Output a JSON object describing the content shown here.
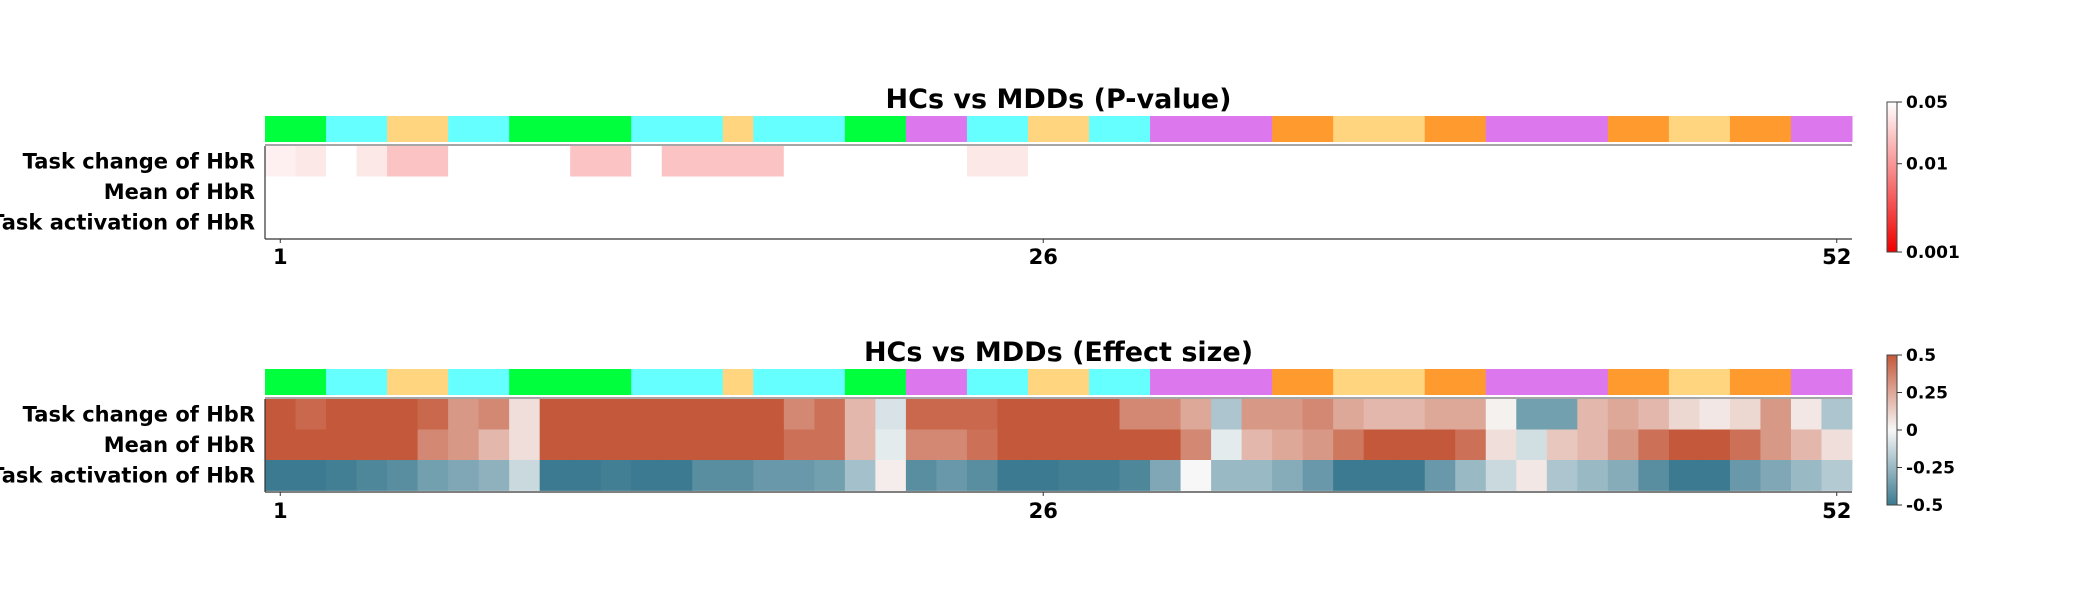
{
  "chart_data": [
    {
      "type": "heatmap",
      "title": "HCs vs MDDs (P-value)",
      "rows": [
        "Task change of HbR",
        "Mean of HbR",
        "Task activation of HbR"
      ],
      "x_ticks": [
        "1",
        "26",
        "52"
      ],
      "n_columns": 52,
      "scale": "log",
      "colorbar": {
        "range": [
          0.001,
          0.05
        ],
        "tick_values": [
          0.05,
          0.01,
          0.001
        ],
        "tick_labels": [
          "0.05",
          "0.01",
          "0.001"
        ],
        "colors": [
          "#ee0000",
          "#ffffff"
        ]
      },
      "region_bar": {
        "colors": [
          "#00ff3c",
          "#66ffff",
          "#ffd580",
          "#dd77ee",
          "#ff9a2e"
        ],
        "segments": [
          {
            "start": 1,
            "end": 2,
            "color": 0
          },
          {
            "start": 3,
            "end": 4,
            "color": 1
          },
          {
            "start": 5,
            "end": 6,
            "color": 2
          },
          {
            "start": 7,
            "end": 8,
            "color": 1
          },
          {
            "start": 9,
            "end": 12,
            "color": 0
          },
          {
            "start": 13,
            "end": 15,
            "color": 1
          },
          {
            "start": 16,
            "end": 16,
            "color": 2
          },
          {
            "start": 17,
            "end": 19,
            "color": 1
          },
          {
            "start": 20,
            "end": 21,
            "color": 0
          },
          {
            "start": 22,
            "end": 23,
            "color": 3
          },
          {
            "start": 24,
            "end": 25,
            "color": 1
          },
          {
            "start": 26,
            "end": 27,
            "color": 2
          },
          {
            "start": 28,
            "end": 29,
            "color": 1
          },
          {
            "start": 30,
            "end": 33,
            "color": 3
          },
          {
            "start": 34,
            "end": 35,
            "color": 4
          },
          {
            "start": 36,
            "end": 38,
            "color": 2
          },
          {
            "start": 39,
            "end": 40,
            "color": 4
          },
          {
            "start": 41,
            "end": 44,
            "color": 3
          },
          {
            "start": 45,
            "end": 46,
            "color": 4
          },
          {
            "start": 47,
            "end": 48,
            "color": 2
          },
          {
            "start": 49,
            "end": 50,
            "color": 4
          },
          {
            "start": 51,
            "end": 52,
            "color": 3
          }
        ]
      },
      "values": [
        [
          0.04,
          0.035,
          1,
          0.035,
          0.02,
          0.02,
          1,
          1,
          1,
          1,
          0.02,
          0.02,
          1,
          0.02,
          0.02,
          0.02,
          0.02,
          1,
          1,
          1,
          1,
          1,
          1,
          0.035,
          0.035,
          1,
          1,
          1,
          1,
          1,
          1,
          1,
          1,
          1,
          1,
          1,
          1,
          1,
          1,
          1,
          1,
          1,
          1,
          1,
          1,
          1,
          1,
          1,
          1,
          1,
          1,
          1
        ],
        [
          1,
          1,
          1,
          1,
          1,
          1,
          1,
          1,
          1,
          1,
          1,
          1,
          1,
          1,
          1,
          1,
          1,
          1,
          1,
          1,
          1,
          1,
          1,
          1,
          1,
          1,
          1,
          1,
          1,
          1,
          1,
          1,
          1,
          1,
          1,
          1,
          1,
          1,
          1,
          1,
          1,
          1,
          1,
          1,
          1,
          1,
          1,
          1,
          1,
          1,
          1,
          1
        ],
        [
          1,
          1,
          1,
          1,
          1,
          1,
          1,
          1,
          1,
          1,
          1,
          1,
          1,
          1,
          1,
          1,
          1,
          1,
          1,
          1,
          1,
          1,
          1,
          1,
          1,
          1,
          1,
          1,
          1,
          1,
          1,
          1,
          1,
          1,
          1,
          1,
          1,
          1,
          1,
          1,
          1,
          1,
          1,
          1,
          1,
          1,
          1,
          1,
          1,
          1,
          1,
          1
        ]
      ]
    },
    {
      "type": "heatmap",
      "title": "HCs vs MDDs (Effect size)",
      "rows": [
        "Task change of HbR",
        "Mean of HbR",
        "Task activation of HbR"
      ],
      "x_ticks": [
        "1",
        "26",
        "52"
      ],
      "n_columns": 52,
      "colorbar": {
        "range": [
          -0.5,
          0.5
        ],
        "tick_values": [
          0.5,
          0.25,
          0,
          -0.25,
          -0.5
        ],
        "tick_labels": [
          "0.5",
          "0.25",
          "0",
          "-0.25",
          "-0.5"
        ],
        "colors": [
          "#3b7a90",
          "#f7f7f7",
          "#c4583a"
        ]
      },
      "region_bar": {
        "colors": [
          "#00ff3c",
          "#66ffff",
          "#ffd580",
          "#dd77ee",
          "#ff9a2e"
        ],
        "segments": [
          {
            "start": 1,
            "end": 2,
            "color": 0
          },
          {
            "start": 3,
            "end": 4,
            "color": 1
          },
          {
            "start": 5,
            "end": 6,
            "color": 2
          },
          {
            "start": 7,
            "end": 8,
            "color": 1
          },
          {
            "start": 9,
            "end": 12,
            "color": 0
          },
          {
            "start": 13,
            "end": 15,
            "color": 1
          },
          {
            "start": 16,
            "end": 16,
            "color": 2
          },
          {
            "start": 17,
            "end": 19,
            "color": 1
          },
          {
            "start": 20,
            "end": 21,
            "color": 0
          },
          {
            "start": 22,
            "end": 23,
            "color": 3
          },
          {
            "start": 24,
            "end": 25,
            "color": 1
          },
          {
            "start": 26,
            "end": 27,
            "color": 2
          },
          {
            "start": 28,
            "end": 29,
            "color": 1
          },
          {
            "start": 30,
            "end": 33,
            "color": 3
          },
          {
            "start": 34,
            "end": 35,
            "color": 4
          },
          {
            "start": 36,
            "end": 38,
            "color": 2
          },
          {
            "start": 39,
            "end": 40,
            "color": 4
          },
          {
            "start": 41,
            "end": 44,
            "color": 3
          },
          {
            "start": 45,
            "end": 46,
            "color": 4
          },
          {
            "start": 47,
            "end": 48,
            "color": 2
          },
          {
            "start": 49,
            "end": 50,
            "color": 4
          },
          {
            "start": 51,
            "end": 52,
            "color": 3
          }
        ]
      },
      "values": [
        [
          0.5,
          0.45,
          0.5,
          0.5,
          0.5,
          0.45,
          0.3,
          0.35,
          0.08,
          0.5,
          0.5,
          0.5,
          0.5,
          0.5,
          0.5,
          0.5,
          0.5,
          0.35,
          0.42,
          0.2,
          -0.08,
          0.45,
          0.45,
          0.45,
          0.5,
          0.5,
          0.5,
          0.5,
          0.35,
          0.35,
          0.25,
          -0.2,
          0.3,
          0.3,
          0.35,
          0.25,
          0.2,
          0.2,
          0.25,
          0.25,
          0.02,
          -0.35,
          -0.35,
          0.2,
          0.25,
          0.2,
          0.1,
          0.05,
          0.1,
          0.3,
          0.05,
          -0.2
        ],
        [
          0.5,
          0.5,
          0.5,
          0.5,
          0.5,
          0.35,
          0.3,
          0.2,
          0.08,
          0.5,
          0.5,
          0.5,
          0.5,
          0.5,
          0.5,
          0.5,
          0.5,
          0.42,
          0.42,
          0.2,
          -0.05,
          0.35,
          0.35,
          0.42,
          0.5,
          0.5,
          0.5,
          0.5,
          0.5,
          0.5,
          0.35,
          -0.05,
          0.2,
          0.25,
          0.3,
          0.4,
          0.5,
          0.5,
          0.5,
          0.42,
          0.08,
          -0.1,
          0.15,
          0.2,
          0.3,
          0.42,
          0.5,
          0.5,
          0.42,
          0.3,
          0.2,
          0.08
        ],
        [
          -0.5,
          -0.5,
          -0.48,
          -0.45,
          -0.42,
          -0.35,
          -0.32,
          -0.28,
          -0.12,
          -0.5,
          -0.5,
          -0.48,
          -0.5,
          -0.5,
          -0.42,
          -0.42,
          -0.38,
          -0.38,
          -0.35,
          -0.22,
          0.03,
          -0.42,
          -0.38,
          -0.42,
          -0.5,
          -0.5,
          -0.48,
          -0.48,
          -0.45,
          -0.32,
          0.0,
          -0.25,
          -0.25,
          -0.3,
          -0.38,
          -0.5,
          -0.5,
          -0.5,
          -0.38,
          -0.25,
          -0.12,
          0.05,
          -0.2,
          -0.25,
          -0.3,
          -0.42,
          -0.5,
          -0.5,
          -0.38,
          -0.32,
          -0.25,
          -0.18
        ]
      ]
    }
  ]
}
